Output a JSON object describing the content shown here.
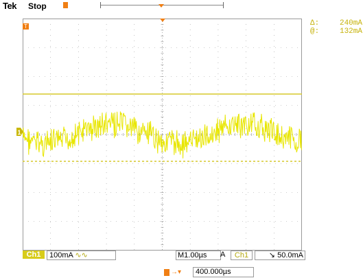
{
  "header": {
    "brand": "Tek",
    "status": "Stop",
    "cursor_delta_label": "Δ:",
    "cursor_delta_value": "240mA",
    "cursor_at_label": "@:",
    "cursor_at_value": "132mA"
  },
  "footer": {
    "channel_label": "Ch1",
    "channel_scale": "100mA",
    "coupling_glyph": "∿∿",
    "timebase_prefix": "M",
    "timebase_value": "1.00µs",
    "trigger_mode": "A",
    "trigger_source": "Ch1",
    "trigger_slope_glyph": "↘",
    "trigger_level": "50.0mA",
    "delay_value": "400.000µs"
  },
  "markers": {
    "channel_marker": "1",
    "trigger_marker": "T"
  },
  "colors": {
    "trace": "#e8e600",
    "cursor": "#d6c92a",
    "grid": "#9a9a9a",
    "marker_orange": "#f07f14",
    "channel_marker": "#c9b80a"
  }
}
